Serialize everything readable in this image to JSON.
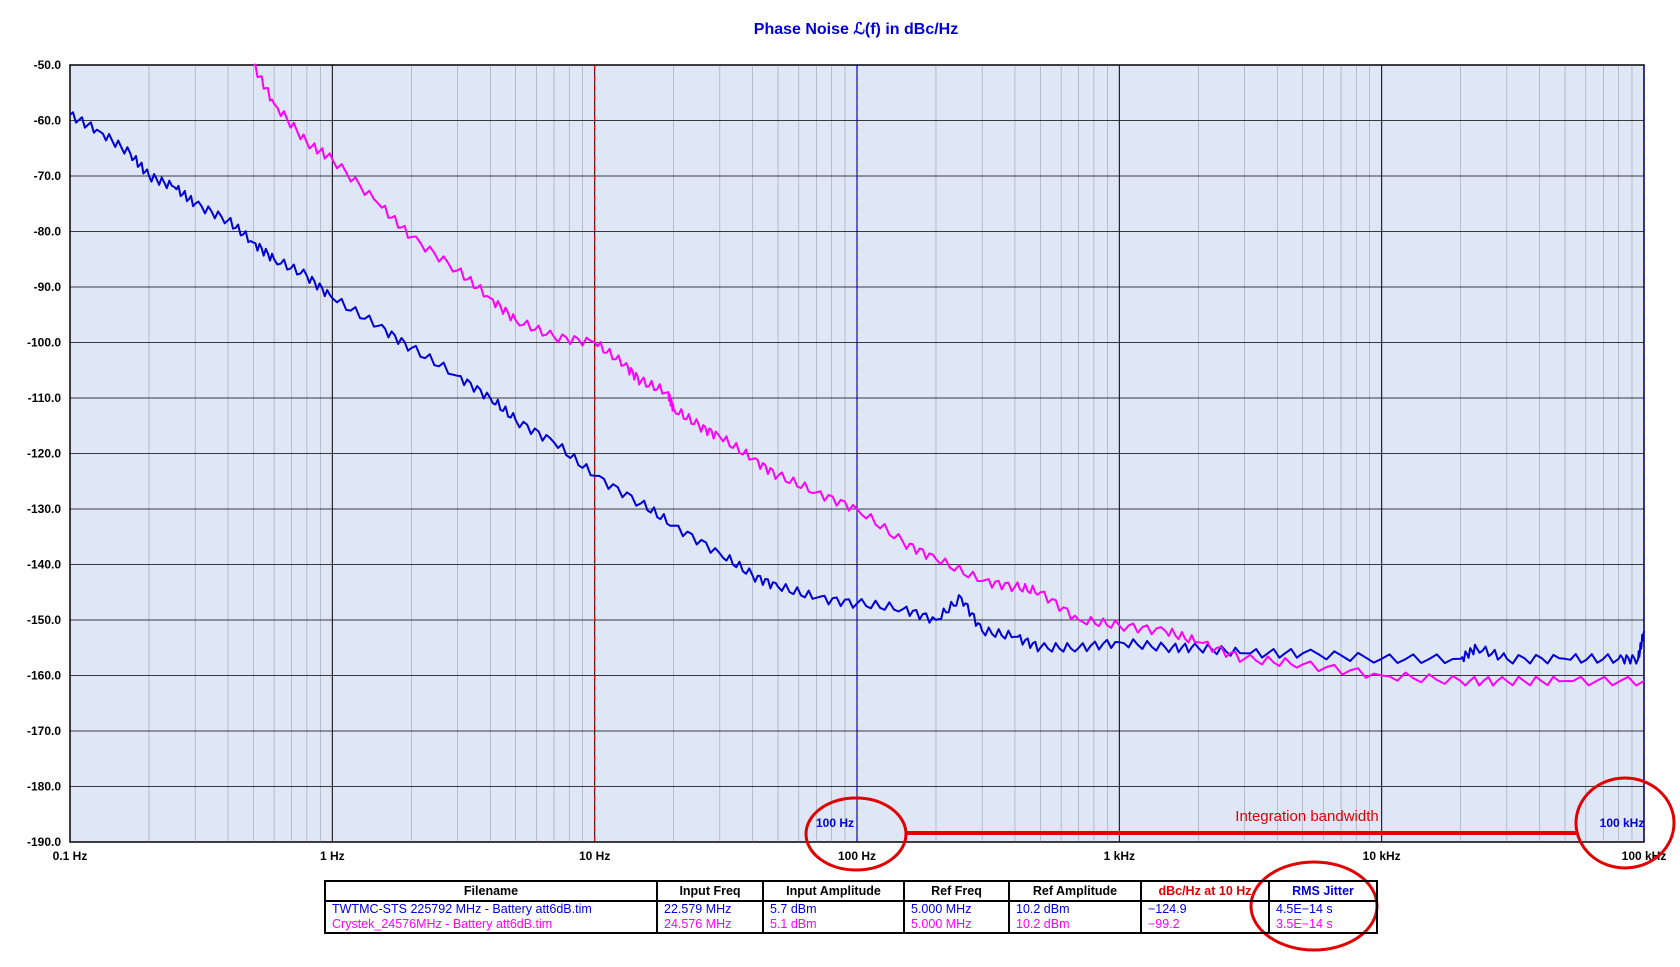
{
  "chart_data": {
    "type": "line",
    "title": "Phase Noise ℒ(f) in dBc/Hz",
    "x_scale": "log",
    "xlim": [
      0.1,
      100000
    ],
    "ylim": [
      -190,
      -50
    ],
    "x_tick_labels": [
      "0.1 Hz",
      "1 Hz",
      "10 Hz",
      "100 Hz",
      "1 kHz",
      "10 kHz",
      "100 kHz"
    ],
    "y_tick_labels": [
      "-50.0",
      "-60.0",
      "-70.0",
      "-80.0",
      "-90.0",
      "-100.0",
      "-110.0",
      "-120.0",
      "-130.0",
      "-140.0",
      "-150.0",
      "-160.0",
      "-170.0",
      "-180.0",
      "-190.0"
    ],
    "grid": true,
    "series": [
      {
        "color": "#0000d8",
        "x": [
          0.1,
          0.13,
          0.17,
          0.2,
          0.25,
          0.3,
          0.4,
          0.5,
          0.6,
          0.8,
          1,
          1.5,
          2,
          3,
          4,
          5,
          7,
          10,
          15,
          20,
          30,
          40,
          50,
          70,
          100,
          150,
          200,
          250,
          300,
          400,
          500,
          700,
          1000,
          1500,
          2000,
          3000,
          5000,
          10000,
          20000,
          23000,
          30000,
          50000,
          80000,
          95000,
          100000
        ],
        "y": [
          -59,
          -62,
          -66,
          -70,
          -72,
          -75,
          -78,
          -82,
          -85,
          -88,
          -92,
          -97,
          -101,
          -106,
          -110,
          -114,
          -118,
          -124,
          -129,
          -133,
          -138,
          -142,
          -144,
          -146,
          -147,
          -148,
          -150,
          -146,
          -152,
          -153,
          -155,
          -155,
          -154,
          -155,
          -155,
          -156,
          -156,
          -157,
          -157,
          -155,
          -157,
          -157,
          -157,
          -157,
          -152
        ]
      },
      {
        "color": "#ff00ff",
        "x": [
          0.5,
          0.6,
          0.8,
          1,
          1.5,
          2,
          3,
          4,
          5,
          7,
          10,
          13,
          15,
          19,
          20,
          25,
          30,
          40,
          50,
          70,
          100,
          150,
          200,
          300,
          400,
          500,
          700,
          1000,
          1500,
          2000,
          3000,
          5000,
          10000,
          20000,
          30000,
          50000,
          100000
        ],
        "y": [
          -50,
          -57,
          -64,
          -67,
          -75,
          -81,
          -87,
          -92,
          -96,
          -99,
          -100,
          -104,
          -107,
          -109,
          -112,
          -115,
          -117,
          -121,
          -124,
          -127,
          -130,
          -136,
          -139,
          -143,
          -144,
          -145,
          -150,
          -151,
          -152,
          -154,
          -157,
          -158,
          -160,
          -161,
          -161,
          -161,
          -161
        ]
      }
    ],
    "reference_lines": [
      {
        "x": 10,
        "color": "#e00000",
        "style": "dashed"
      },
      {
        "x": 100,
        "color": "#0000d8",
        "style": "dashed"
      },
      {
        "x": 100000,
        "color": "#0000d8",
        "style": "dashed"
      }
    ],
    "annotations": [
      {
        "text": "100 Hz",
        "x": 100,
        "color": "#0000d8"
      },
      {
        "text": "100 kHz",
        "x": 100000,
        "color": "#0000d8"
      },
      {
        "text": "Integration bandwidth",
        "color": "#e00000"
      }
    ]
  },
  "table": {
    "headers": [
      "Filename",
      "Input Freq",
      "Input Amplitude",
      "Ref Freq",
      "Ref Amplitude",
      "dBc/Hz at 10 Hz",
      "RMS Jitter"
    ],
    "rows": [
      {
        "color": "#0000d8",
        "cells": [
          "TWTMC-STS 225792 MHz - Battery att6dB.tim",
          "22.579 MHz",
          "5.7 dBm",
          "5.000 MHz",
          "10.2 dBm",
          "−124.9",
          "4.5E−14 s"
        ]
      },
      {
        "color": "#ff00ff",
        "cells": [
          "Crystek_24576MHz - Battery att6dB.tim",
          "24.576 MHz",
          "5.1 dBm",
          "5.000 MHz",
          "10.2 dBm",
          "−99.2",
          "3.5E−14 s"
        ]
      }
    ]
  }
}
